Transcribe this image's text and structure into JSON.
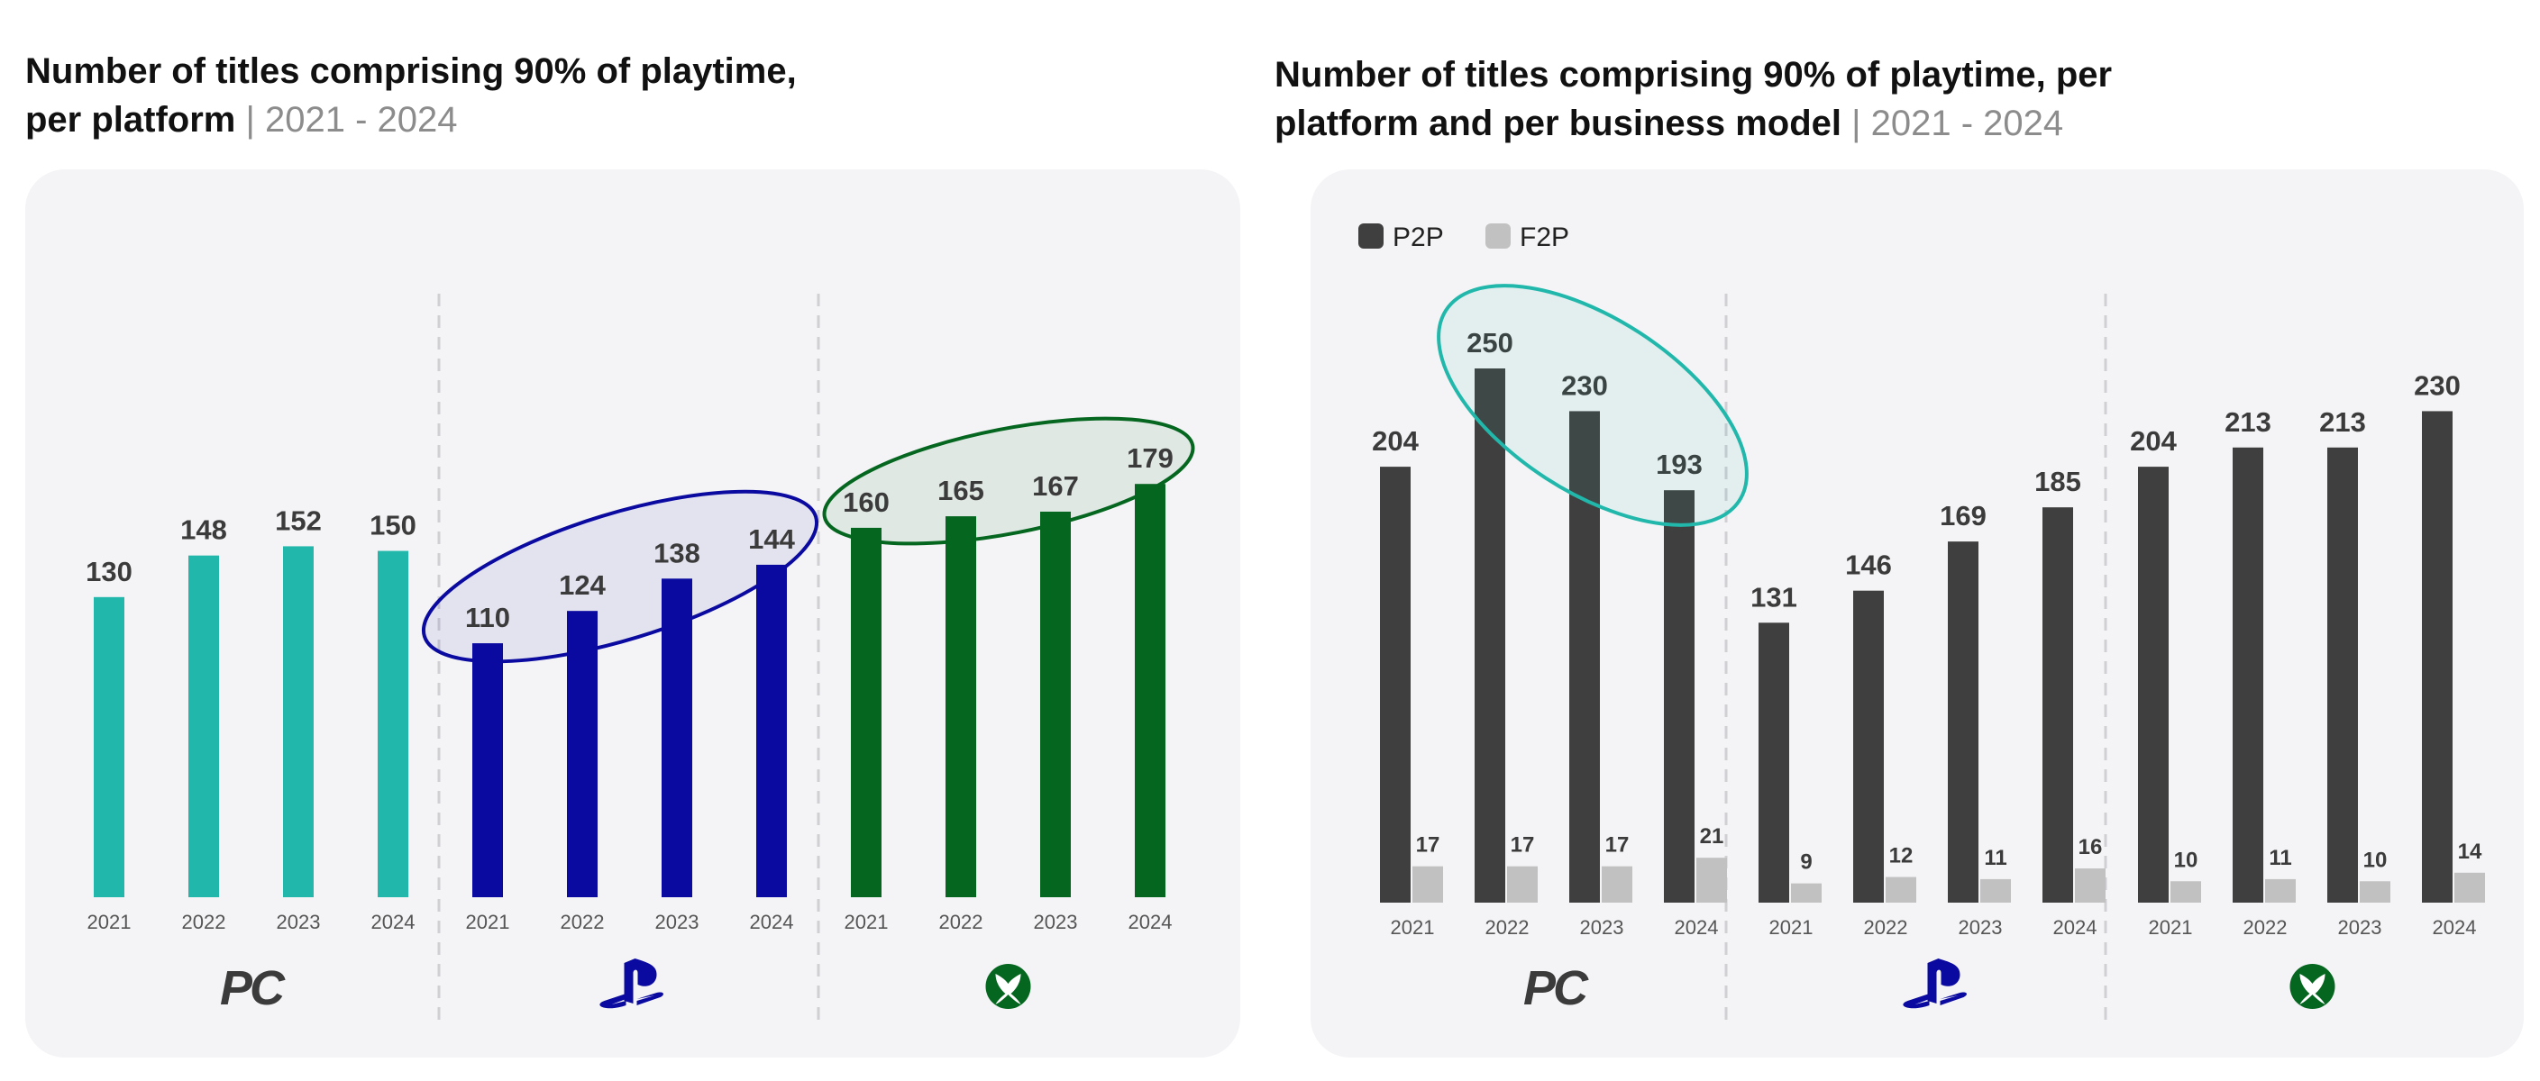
{
  "left": {
    "title_main": "Number of titles comprising 90% of playtime,",
    "title_main2": "per platform",
    "title_range": "| 2021 - 2024"
  },
  "right": {
    "title_main": "Number of titles comprising 90% of playtime, per",
    "title_main2": "platform and per business model",
    "title_range": "| 2021 - 2024"
  },
  "colors": {
    "pc": "#21b8ab",
    "playstation": "#0a0aa0",
    "xbox": "#04661f",
    "p2p": "#3f3f3f",
    "f2p": "#c1c1c1"
  },
  "chart_data": [
    {
      "type": "bar",
      "title": "Number of titles comprising 90% of playtime, per platform | 2021 - 2024",
      "groups": [
        "PC",
        "PlayStation",
        "Xbox"
      ],
      "group_icons": [
        "pc-logo-icon",
        "playstation-logo-icon",
        "xbox-logo-icon"
      ],
      "group_labels": [
        "PC",
        "",
        ""
      ],
      "categories": [
        "2021",
        "2022",
        "2023",
        "2024"
      ],
      "series": [
        {
          "group": "PC",
          "values": [
            130,
            148,
            152,
            150
          ]
        },
        {
          "group": "PlayStation",
          "values": [
            110,
            124,
            138,
            144
          ]
        },
        {
          "group": "Xbox",
          "values": [
            160,
            165,
            167,
            179
          ]
        }
      ],
      "ylim": [
        0,
        190
      ],
      "grid": false,
      "highlights": [
        "PlayStation",
        "Xbox"
      ]
    },
    {
      "type": "bar",
      "title": "Number of titles comprising 90% of playtime, per platform and per business model | 2021 - 2024",
      "legend": [
        "P2P",
        "F2P"
      ],
      "legend_position": "top-left",
      "groups": [
        "PC",
        "PlayStation",
        "Xbox"
      ],
      "group_icons": [
        "pc-logo-icon",
        "playstation-logo-icon",
        "xbox-logo-icon"
      ],
      "group_labels": [
        "PC",
        "",
        ""
      ],
      "categories": [
        "2021",
        "2022",
        "2023",
        "2024"
      ],
      "series": [
        {
          "name": "P2P",
          "group": "PC",
          "values": [
            204,
            250,
            230,
            193
          ]
        },
        {
          "name": "F2P",
          "group": "PC",
          "values": [
            17,
            17,
            17,
            21
          ]
        },
        {
          "name": "P2P",
          "group": "PlayStation",
          "values": [
            131,
            146,
            169,
            185
          ]
        },
        {
          "name": "F2P",
          "group": "PlayStation",
          "values": [
            9,
            12,
            11,
            16
          ]
        },
        {
          "name": "P2P",
          "group": "Xbox",
          "values": [
            204,
            213,
            213,
            230
          ]
        },
        {
          "name": "F2P",
          "group": "Xbox",
          "values": [
            10,
            11,
            10,
            14
          ]
        }
      ],
      "ylim": [
        0,
        260
      ],
      "grid": false,
      "highlights": [
        "PC P2P 2022-2024"
      ]
    }
  ]
}
